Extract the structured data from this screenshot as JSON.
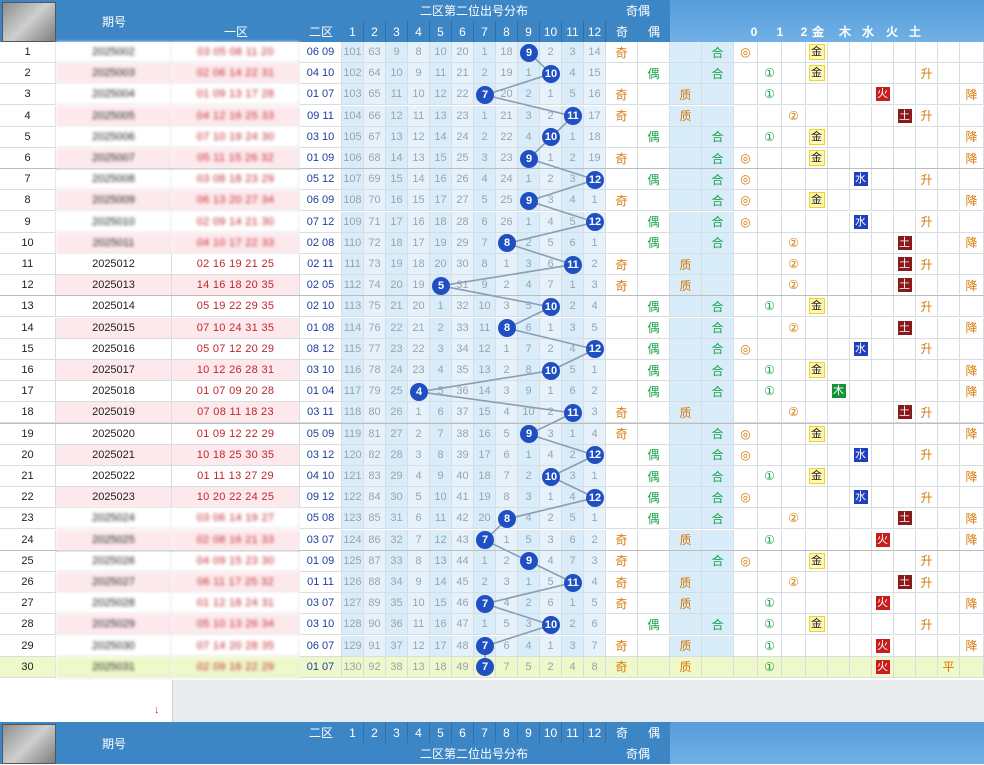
{
  "header": {
    "period_label": "期号",
    "zone1_label": "一区",
    "zone2_label": "二区",
    "dist_title": "二区第二位出号分布",
    "odd_even_title": "奇偶",
    "odd_label": "奇",
    "even_label": "偶",
    "big_label": "质",
    "composite_label": "合",
    "cols": [
      "1",
      "2",
      "3",
      "4",
      "5",
      "6",
      "7",
      "8",
      "9",
      "10",
      "11",
      "12"
    ],
    "misc_headers": [
      "0",
      "1",
      "2",
      "金",
      "木",
      "水",
      "火",
      "土"
    ]
  },
  "rows": [
    {
      "n": "1",
      "period": "2025002",
      "z1": "03 05 08 11 20",
      "z2": "06 09",
      "d": [
        101,
        63,
        9,
        8,
        10,
        20,
        1,
        18,
        null,
        2,
        3,
        14
      ],
      "v": 9,
      "oe": "奇",
      "pc": "",
      "comp": "合",
      "s": "◎",
      "w": "金",
      "trend": ""
    },
    {
      "n": "2",
      "period": "2025003",
      "z1": "02 06 14 22 31",
      "z2": "04 10",
      "d": [
        102,
        64,
        10,
        9,
        11,
        21,
        2,
        19,
        1,
        null,
        4,
        15
      ],
      "v": 10,
      "oe": "偶",
      "pc": "",
      "comp": "合",
      "s": "①",
      "w": "金",
      "trend": "升"
    },
    {
      "n": "3",
      "period": "2025004",
      "z1": "01 09 13 17 28",
      "z2": "01 07",
      "d": [
        103,
        65,
        11,
        10,
        12,
        22,
        null,
        20,
        2,
        1,
        5,
        16
      ],
      "v": 7,
      "oe": "奇",
      "pc": "质",
      "comp": "",
      "s": "①",
      "w": "火",
      "trend": "降"
    },
    {
      "n": "4",
      "period": "2025005",
      "z1": "04 12 16 25 33",
      "z2": "09 11",
      "d": [
        104,
        66,
        12,
        11,
        13,
        23,
        1,
        21,
        3,
        2,
        null,
        17
      ],
      "v": 11,
      "oe": "奇",
      "pc": "质",
      "comp": "",
      "s": "②",
      "w": "土",
      "trend": "升"
    },
    {
      "n": "5",
      "period": "2025006",
      "z1": "07 10 19 24 30",
      "z2": "03 10",
      "d": [
        105,
        67,
        13,
        12,
        14,
        24,
        2,
        22,
        4,
        null,
        1,
        18
      ],
      "v": 10,
      "oe": "偶",
      "pc": "",
      "comp": "合",
      "s": "①",
      "w": "金",
      "trend": "降"
    },
    {
      "n": "6",
      "period": "2025007",
      "z1": "05 11 15 26 32",
      "z2": "01 09",
      "d": [
        106,
        68,
        14,
        13,
        15,
        25,
        3,
        23,
        null,
        1,
        2,
        19
      ],
      "v": 9,
      "oe": "奇",
      "pc": "",
      "comp": "合",
      "s": "◎",
      "w": "金",
      "trend": "降"
    },
    {
      "n": "7",
      "period": "2025008",
      "z1": "03 08 18 23 29",
      "z2": "05 12",
      "d": [
        107,
        69,
        15,
        14,
        16,
        26,
        4,
        24,
        1,
        2,
        3,
        null
      ],
      "v": 12,
      "oe": "偶",
      "pc": "",
      "comp": "合",
      "s": "◎",
      "w": "水",
      "trend": "升"
    },
    {
      "n": "8",
      "period": "2025009",
      "z1": "06 13 20 27 34",
      "z2": "06 09",
      "d": [
        108,
        70,
        16,
        15,
        17,
        27,
        5,
        25,
        null,
        3,
        4,
        1
      ],
      "v": 9,
      "oe": "奇",
      "pc": "",
      "comp": "合",
      "s": "◎",
      "w": "金",
      "trend": "降"
    },
    {
      "n": "9",
      "period": "2025010",
      "z1": "02 09 14 21 30",
      "z2": "07 12",
      "d": [
        109,
        71,
        17,
        16,
        18,
        28,
        6,
        26,
        1,
        4,
        5,
        null
      ],
      "v": 12,
      "oe": "偶",
      "pc": "",
      "comp": "合",
      "s": "◎",
      "w": "水",
      "trend": "升"
    },
    {
      "n": "10",
      "period": "2025011",
      "z1": "04 10 17 22 33",
      "z2": "02 08",
      "d": [
        110,
        72,
        18,
        17,
        19,
        29,
        7,
        null,
        2,
        5,
        6,
        1
      ],
      "v": 8,
      "oe": "偶",
      "pc": "",
      "comp": "合",
      "s": "②",
      "w": "土",
      "trend": "降"
    },
    {
      "n": "11",
      "period": "2025012",
      "z1": "02 16 19 21 25",
      "z2": "02 11",
      "d": [
        111,
        73,
        19,
        18,
        20,
        30,
        8,
        1,
        3,
        6,
        null,
        2
      ],
      "v": 11,
      "oe": "奇",
      "pc": "质",
      "comp": "",
      "s": "②",
      "w": "土",
      "trend": "升"
    },
    {
      "n": "12",
      "period": "2025013",
      "z1": "14 16 18 20 35",
      "z2": "02 05",
      "d": [
        112,
        74,
        20,
        19,
        null,
        31,
        9,
        2,
        4,
        7,
        1,
        3
      ],
      "v": 5,
      "oe": "奇",
      "pc": "质",
      "comp": "",
      "s": "②",
      "w": "土",
      "trend": "降"
    },
    {
      "n": "13",
      "period": "2025014",
      "z1": "05 19 22 29 35",
      "z2": "02 10",
      "d": [
        113,
        75,
        21,
        20,
        1,
        32,
        10,
        3,
        5,
        null,
        2,
        4
      ],
      "v": 10,
      "oe": "偶",
      "pc": "",
      "comp": "合",
      "s": "①",
      "w": "金",
      "trend": "升"
    },
    {
      "n": "14",
      "period": "2025015",
      "z1": "07 10 24 31 35",
      "z2": "01 08",
      "d": [
        114,
        76,
        22,
        21,
        2,
        33,
        11,
        null,
        6,
        1,
        3,
        5
      ],
      "v": 8,
      "oe": "偶",
      "pc": "",
      "comp": "合",
      "s": "②",
      "w": "土",
      "trend": "降"
    },
    {
      "n": "15",
      "period": "2025016",
      "z1": "05 07 12 20 29",
      "z2": "08 12",
      "d": [
        115,
        77,
        23,
        22,
        3,
        34,
        12,
        1,
        7,
        2,
        4,
        null
      ],
      "v": 12,
      "oe": "偶",
      "pc": "",
      "comp": "合",
      "s": "◎",
      "w": "水",
      "trend": "升"
    },
    {
      "n": "16",
      "period": "2025017",
      "z1": "10 12 26 28 31",
      "z2": "03 10",
      "d": [
        116,
        78,
        24,
        23,
        4,
        35,
        13,
        2,
        8,
        null,
        5,
        1
      ],
      "v": 10,
      "oe": "偶",
      "pc": "",
      "comp": "合",
      "s": "①",
      "w": "金",
      "trend": "降"
    },
    {
      "n": "17",
      "period": "2025018",
      "z1": "01 07 09 20 28",
      "z2": "01 04",
      "d": [
        117,
        79,
        25,
        null,
        5,
        36,
        14,
        3,
        9,
        1,
        6,
        2
      ],
      "v": 4,
      "oe": "偶",
      "pc": "",
      "comp": "合",
      "s": "①",
      "w": "木",
      "trend": "降"
    },
    {
      "n": "18",
      "period": "2025019",
      "z1": "07 08 11 18 23",
      "z2": "03 11",
      "d": [
        118,
        80,
        26,
        1,
        6,
        37,
        15,
        4,
        10,
        2,
        null,
        3
      ],
      "v": 11,
      "oe": "奇",
      "pc": "质",
      "comp": "",
      "s": "②",
      "w": "土",
      "trend": "升"
    },
    {
      "n": "19",
      "period": "2025020",
      "z1": "01 09 12 22 29",
      "z2": "05 09",
      "d": [
        119,
        81,
        27,
        2,
        7,
        38,
        16,
        5,
        null,
        3,
        1,
        4
      ],
      "v": 9,
      "oe": "奇",
      "pc": "",
      "comp": "合",
      "s": "◎",
      "w": "金",
      "trend": "降"
    },
    {
      "n": "20",
      "period": "2025021",
      "z1": "10 18 25 30 35",
      "z2": "03 12",
      "d": [
        120,
        82,
        28,
        3,
        8,
        39,
        17,
        6,
        1,
        4,
        2,
        null
      ],
      "v": 12,
      "oe": "偶",
      "pc": "",
      "comp": "合",
      "s": "◎",
      "w": "水",
      "trend": "升"
    },
    {
      "n": "21",
      "period": "2025022",
      "z1": "01 11 13 27 29",
      "z2": "04 10",
      "d": [
        121,
        83,
        29,
        4,
        9,
        40,
        18,
        7,
        2,
        null,
        3,
        1
      ],
      "v": 10,
      "oe": "偶",
      "pc": "",
      "comp": "合",
      "s": "①",
      "w": "金",
      "trend": "降"
    },
    {
      "n": "22",
      "period": "2025023",
      "z1": "10 20 22 24 25",
      "z2": "09 12",
      "d": [
        122,
        84,
        30,
        5,
        10,
        41,
        19,
        8,
        3,
        1,
        4,
        null
      ],
      "v": 12,
      "oe": "偶",
      "pc": "",
      "comp": "合",
      "s": "◎",
      "w": "水",
      "trend": "升"
    },
    {
      "n": "23",
      "period": "2025024",
      "z1": "03 06 14 19 27",
      "z2": "05 08",
      "d": [
        123,
        85,
        31,
        6,
        11,
        42,
        20,
        null,
        4,
        2,
        5,
        1
      ],
      "v": 8,
      "oe": "偶",
      "pc": "",
      "comp": "合",
      "s": "②",
      "w": "土",
      "trend": "降"
    },
    {
      "n": "24",
      "period": "2025025",
      "z1": "02 08 16 21 33",
      "z2": "03 07",
      "d": [
        124,
        86,
        32,
        7,
        12,
        43,
        null,
        1,
        5,
        3,
        6,
        2
      ],
      "v": 7,
      "oe": "奇",
      "pc": "质",
      "comp": "",
      "s": "①",
      "w": "火",
      "trend": "降"
    },
    {
      "n": "25",
      "period": "2025026",
      "z1": "04 09 15 23 30",
      "z2": "01 09",
      "d": [
        125,
        87,
        33,
        8,
        13,
        44,
        1,
        2,
        null,
        4,
        7,
        3
      ],
      "v": 9,
      "oe": "奇",
      "pc": "",
      "comp": "合",
      "s": "◎",
      "w": "金",
      "trend": "升"
    },
    {
      "n": "26",
      "period": "2025027",
      "z1": "06 11 17 25 32",
      "z2": "01 11",
      "d": [
        126,
        88,
        34,
        9,
        14,
        45,
        2,
        3,
        1,
        5,
        null,
        4
      ],
      "v": 11,
      "oe": "奇",
      "pc": "质",
      "comp": "",
      "s": "②",
      "w": "土",
      "trend": "升"
    },
    {
      "n": "27",
      "period": "2025028",
      "z1": "01 12 18 24 31",
      "z2": "03 07",
      "d": [
        127,
        89,
        35,
        10,
        15,
        46,
        null,
        4,
        2,
        6,
        1,
        5
      ],
      "v": 7,
      "oe": "奇",
      "pc": "质",
      "comp": "",
      "s": "①",
      "w": "火",
      "trend": "降"
    },
    {
      "n": "28",
      "period": "2025029",
      "z1": "05 10 13 26 34",
      "z2": "03 10",
      "d": [
        128,
        90,
        36,
        11,
        16,
        47,
        1,
        5,
        3,
        null,
        2,
        6
      ],
      "v": 10,
      "oe": "偶",
      "pc": "",
      "comp": "合",
      "s": "①",
      "w": "金",
      "trend": "升"
    },
    {
      "n": "29",
      "period": "2025030",
      "z1": "07 14 20 28 35",
      "z2": "06 07",
      "d": [
        129,
        91,
        37,
        12,
        17,
        48,
        null,
        6,
        4,
        1,
        3,
        7
      ],
      "v": 7,
      "oe": "奇",
      "pc": "质",
      "comp": "",
      "s": "①",
      "w": "火",
      "trend": "降"
    },
    {
      "n": "30",
      "period": "2025031",
      "z1": "02 09 16 22 29",
      "z2": "01 07",
      "d": [
        130,
        92,
        38,
        13,
        18,
        49,
        null,
        7,
        5,
        2,
        4,
        8
      ],
      "v": 7,
      "oe": "奇",
      "pc": "质",
      "comp": "",
      "s": "①",
      "w": "火",
      "trend": "平"
    }
  ]
}
